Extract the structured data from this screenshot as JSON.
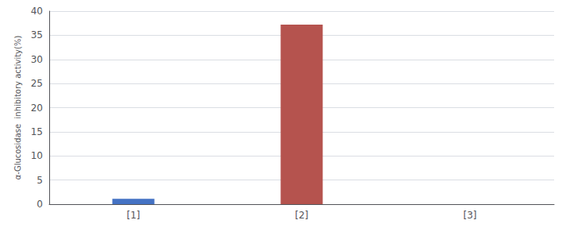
{
  "chart_data": {
    "type": "bar",
    "categories": [
      "[1]",
      "[2]",
      "[3]"
    ],
    "values": [
      1.1,
      37.2,
      0.0
    ],
    "colors": [
      "#4472C4",
      "#B5534E",
      "#FFFFFF"
    ],
    "ylabel": "α-Glucosidase  inhibitory activity(%)",
    "ylim": [
      0,
      40
    ],
    "yticks": [
      0,
      5,
      10,
      15,
      20,
      25,
      30,
      35,
      40
    ],
    "grid": true
  }
}
